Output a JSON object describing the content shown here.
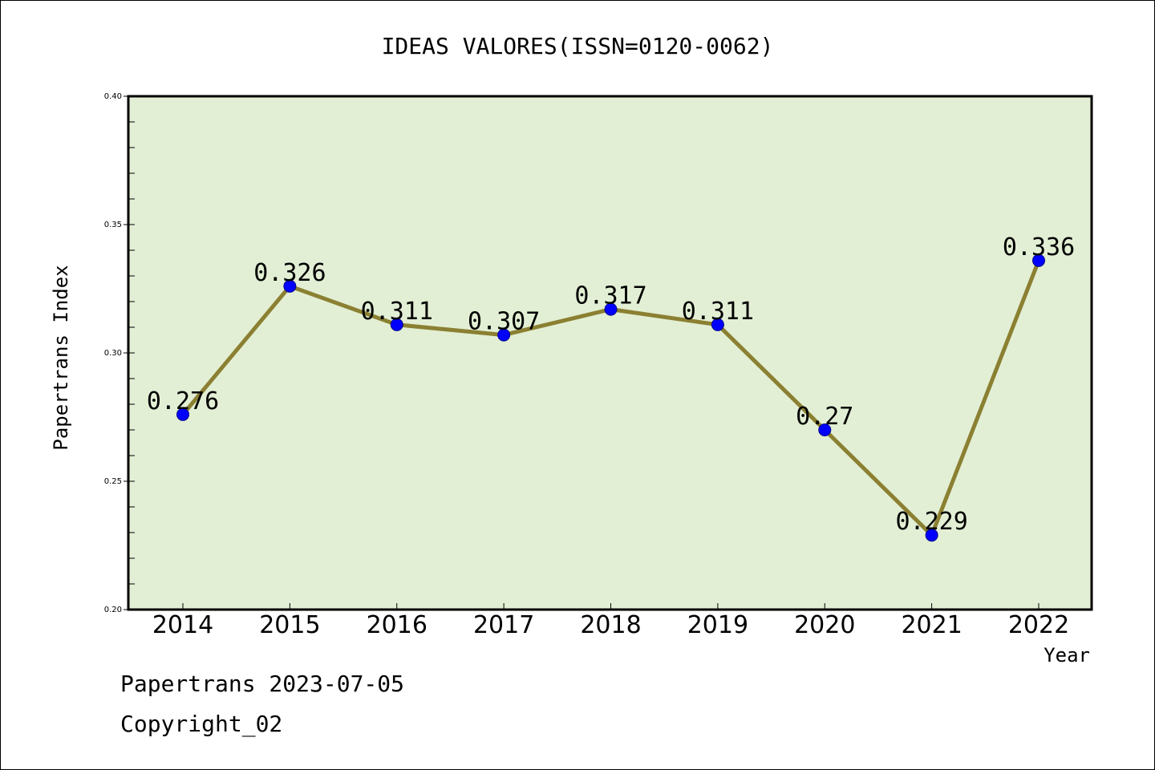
{
  "chart_data": {
    "type": "line",
    "title": "IDEAS VALORES(ISSN=0120-0062)",
    "xlabel": "Year",
    "ylabel": "Papertrans Index",
    "categories": [
      "2014",
      "2015",
      "2016",
      "2017",
      "2018",
      "2019",
      "2020",
      "2021",
      "2022"
    ],
    "series": [
      {
        "values": [
          0.276,
          0.326,
          0.311,
          0.307,
          0.317,
          0.311,
          0.27,
          0.229,
          0.336
        ],
        "labels": [
          "0.276",
          "0.326",
          "0.311",
          "0.307",
          "0.317",
          "0.311",
          "0.27",
          "0.229",
          "0.336"
        ]
      }
    ],
    "ylim": [
      0.2,
      0.4
    ],
    "yticks": [
      "0.20",
      "0.25",
      "0.30",
      "0.35",
      "0.40"
    ],
    "grid": false,
    "legend": "none"
  },
  "footer": {
    "line1": "Papertrans 2023-07-05",
    "line2": "Copyright_02"
  },
  "colors": {
    "plot_background": "#e2efd4",
    "line": "#8b8032",
    "marker": "#0000ff"
  }
}
